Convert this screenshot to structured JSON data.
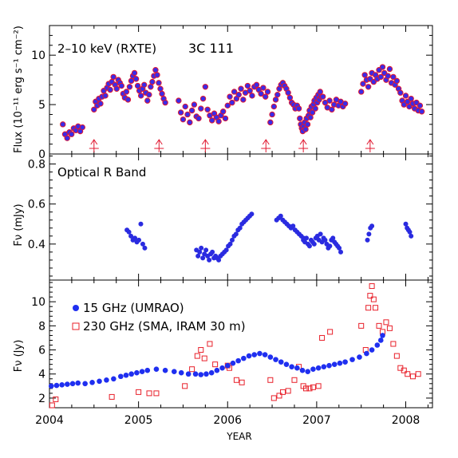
{
  "chart_data": [
    {
      "type": "scatter",
      "panel": "xray",
      "annotation_left": "2–10 keV (RXTE)",
      "annotation_right": "3C 111",
      "ylabel": "Flux (10⁻¹¹ erg s⁻¹ cm⁻²)",
      "xlim": [
        2004.0,
        2008.3
      ],
      "ylim": [
        0,
        13
      ],
      "yticks": [
        0,
        5,
        10
      ],
      "colors": {
        "fill": "#3a2be8",
        "edge": "#e01830"
      },
      "arrows_x": [
        2004.5,
        2005.23,
        2005.75,
        2006.43,
        2006.85,
        2007.6
      ],
      "segments": [
        {
          "x0": 2004.15,
          "x1": 2004.37,
          "values": [
            3.0,
            2.0,
            1.6,
            2.2,
            2.0,
            2.6,
            2.4,
            2.8,
            2.3,
            2.7
          ]
        },
        {
          "x0": 2004.5,
          "x1": 2005.3,
          "values": [
            4.5,
            5.3,
            4.9,
            5.6,
            5.1,
            5.8,
            6.4,
            5.9,
            6.7,
            7.1,
            6.5,
            7.3,
            7.8,
            7.0,
            6.6,
            7.5,
            7.2,
            6.9,
            6.1,
            5.7,
            6.3,
            5.5,
            6.8,
            7.4,
            7.9,
            8.2,
            7.6,
            6.9,
            6.4,
            5.9,
            6.6,
            7.0,
            6.2,
            5.4,
            6.0,
            6.8,
            7.3,
            7.9,
            8.5,
            8.0,
            7.2,
            6.6,
            6.1,
            5.6,
            5.2
          ]
        },
        {
          "x0": 2005.45,
          "x1": 2006.45,
          "values": [
            5.4,
            4.2,
            3.5,
            4.8,
            4.0,
            3.2,
            4.4,
            5.0,
            3.8,
            3.6,
            4.6,
            5.6,
            6.8,
            4.5,
            3.9,
            3.4,
            4.1,
            3.7,
            3.3,
            3.9,
            4.3,
            3.6,
            4.9,
            5.8,
            5.2,
            6.3,
            5.6,
            6.0,
            6.6,
            5.5,
            6.2,
            6.9,
            6.4,
            5.9,
            6.8,
            7.0,
            6.5,
            6.1,
            6.7,
            5.8,
            6.3
          ]
        },
        {
          "x0": 2006.48,
          "x1": 2006.78,
          "values": [
            3.2,
            4.0,
            4.8,
            5.5,
            6.0,
            6.6,
            7.0,
            7.2,
            6.9,
            6.6,
            6.2,
            5.7,
            5.2,
            5.0,
            4.6,
            4.9
          ]
        },
        {
          "x0": 2006.8,
          "x1": 2007.05,
          "values": [
            4.6,
            3.6,
            3.0,
            2.6,
            2.3,
            2.8,
            3.2,
            2.5,
            3.6,
            3.0,
            3.9,
            4.4,
            3.7,
            4.8,
            4.2,
            5.0,
            5.4,
            4.6,
            5.7,
            5.2,
            6.0,
            5.5,
            6.3,
            5.8
          ]
        },
        {
          "x0": 2007.07,
          "x1": 2007.32,
          "values": [
            5.8,
            5.2,
            4.7,
            5.4,
            4.5,
            5.0,
            5.5,
            4.9,
            5.3,
            4.8,
            5.1
          ]
        },
        {
          "x0": 2007.5,
          "x1": 2008.18,
          "values": [
            6.3,
            7.1,
            8.0,
            7.5,
            6.8,
            7.6,
            8.2,
            7.3,
            8.0,
            7.6,
            8.5,
            7.8,
            8.8,
            8.2,
            7.5,
            7.9,
            8.6,
            7.2,
            7.8,
            7.0,
            7.4,
            6.6,
            6.2,
            5.4,
            5.0,
            5.9,
            5.3,
            4.8,
            5.6,
            5.1,
            4.6,
            5.2,
            4.4,
            4.9,
            4.3
          ]
        }
      ]
    },
    {
      "type": "scatter",
      "panel": "optical",
      "annotation": "Optical R Band",
      "ylabel": "Fν (mJy)",
      "xlim": [
        2004.0,
        2008.3
      ],
      "ylim": [
        0.22,
        0.85
      ],
      "yticks": [
        0.4,
        0.6,
        0.8
      ],
      "colors": {
        "fill": "#2a2be0"
      },
      "segments": [
        {
          "x0": 2004.87,
          "x1": 2005.07,
          "values": [
            0.47,
            0.46,
            0.44,
            0.42,
            0.43,
            0.41,
            0.42,
            0.5,
            0.4,
            0.38
          ]
        },
        {
          "x0": 2005.65,
          "x1": 2005.9,
          "values": [
            0.37,
            0.34,
            0.36,
            0.38,
            0.33,
            0.35,
            0.37,
            0.34,
            0.32,
            0.35,
            0.36,
            0.33,
            0.34,
            0.33,
            0.32
          ]
        },
        {
          "x0": 2005.92,
          "x1": 2006.27,
          "values": [
            0.34,
            0.35,
            0.36,
            0.37,
            0.39,
            0.4,
            0.42,
            0.44,
            0.45,
            0.47,
            0.48,
            0.5,
            0.51,
            0.52,
            0.53,
            0.54,
            0.55
          ]
        },
        {
          "x0": 2006.55,
          "x1": 2006.85,
          "values": [
            0.52,
            0.53,
            0.54,
            0.52,
            0.51,
            0.5,
            0.49,
            0.48,
            0.49,
            0.47,
            0.46,
            0.45,
            0.44,
            0.43
          ]
        },
        {
          "x0": 2006.85,
          "x1": 2007.27,
          "values": [
            0.42,
            0.41,
            0.43,
            0.4,
            0.39,
            0.42,
            0.41,
            0.4,
            0.43,
            0.44,
            0.42,
            0.45,
            0.41,
            0.43,
            0.42,
            0.4,
            0.38,
            0.39,
            0.42,
            0.43,
            0.41,
            0.4,
            0.39,
            0.38,
            0.36
          ]
        },
        {
          "x0": 2007.57,
          "x1": 2007.62,
          "values": [
            0.42,
            0.45,
            0.48,
            0.49
          ]
        },
        {
          "x0": 2008.0,
          "x1": 2008.06,
          "values": [
            0.5,
            0.48,
            0.47,
            0.46,
            0.44
          ]
        }
      ]
    },
    {
      "type": "scatter",
      "panel": "radio",
      "ylabel": "Fν (Jy)",
      "xlabel": "YEAR",
      "xlim": [
        2004.0,
        2008.3
      ],
      "ylim": [
        1.2,
        11.8
      ],
      "yticks": [
        2,
        4,
        6,
        8,
        10
      ],
      "xticks": [
        2004,
        2005,
        2006,
        2007,
        2008
      ],
      "series": [
        {
          "name": "15 GHz (UMRAO)",
          "color": "#1f2ff0",
          "marker": "filled-circle",
          "points": [
            [
              2004.02,
              3.0
            ],
            [
              2004.08,
              3.05
            ],
            [
              2004.14,
              3.1
            ],
            [
              2004.2,
              3.15
            ],
            [
              2004.26,
              3.2
            ],
            [
              2004.32,
              3.25
            ],
            [
              2004.4,
              3.2
            ],
            [
              2004.48,
              3.3
            ],
            [
              2004.56,
              3.4
            ],
            [
              2004.64,
              3.5
            ],
            [
              2004.72,
              3.6
            ],
            [
              2004.8,
              3.8
            ],
            [
              2004.86,
              3.9
            ],
            [
              2004.92,
              4.0
            ],
            [
              2004.98,
              4.1
            ],
            [
              2005.04,
              4.2
            ],
            [
              2005.1,
              4.3
            ],
            [
              2005.2,
              4.4
            ],
            [
              2005.3,
              4.3
            ],
            [
              2005.4,
              4.2
            ],
            [
              2005.48,
              4.1
            ],
            [
              2005.56,
              4.0
            ],
            [
              2005.64,
              4.0
            ],
            [
              2005.7,
              3.95
            ],
            [
              2005.76,
              4.0
            ],
            [
              2005.82,
              4.1
            ],
            [
              2005.88,
              4.3
            ],
            [
              2005.94,
              4.5
            ],
            [
              2006.0,
              4.7
            ],
            [
              2006.06,
              4.9
            ],
            [
              2006.12,
              5.1
            ],
            [
              2006.18,
              5.3
            ],
            [
              2006.24,
              5.5
            ],
            [
              2006.3,
              5.6
            ],
            [
              2006.36,
              5.7
            ],
            [
              2006.42,
              5.6
            ],
            [
              2006.48,
              5.4
            ],
            [
              2006.54,
              5.2
            ],
            [
              2006.6,
              5.0
            ],
            [
              2006.66,
              4.8
            ],
            [
              2006.72,
              4.6
            ],
            [
              2006.78,
              4.5
            ],
            [
              2006.84,
              4.3
            ],
            [
              2006.9,
              4.2
            ],
            [
              2006.96,
              4.4
            ],
            [
              2007.02,
              4.5
            ],
            [
              2007.08,
              4.6
            ],
            [
              2007.14,
              4.7
            ],
            [
              2007.2,
              4.8
            ],
            [
              2007.26,
              4.9
            ],
            [
              2007.32,
              5.0
            ],
            [
              2007.4,
              5.2
            ],
            [
              2007.48,
              5.4
            ],
            [
              2007.56,
              5.7
            ],
            [
              2007.62,
              6.0
            ],
            [
              2007.68,
              6.4
            ],
            [
              2007.72,
              6.8
            ],
            [
              2007.74,
              7.2
            ]
          ]
        },
        {
          "name": "230 GHz (SMA, IRAM 30 m)",
          "color": "#e8202a",
          "marker": "open-square",
          "points": [
            [
              2004.03,
              1.4
            ],
            [
              2004.07,
              1.9
            ],
            [
              2004.7,
              2.1
            ],
            [
              2005.0,
              2.5
            ],
            [
              2005.12,
              2.4
            ],
            [
              2005.2,
              2.4
            ],
            [
              2005.52,
              3.0
            ],
            [
              2005.6,
              4.4
            ],
            [
              2005.66,
              5.5
            ],
            [
              2005.7,
              6.0
            ],
            [
              2005.74,
              5.3
            ],
            [
              2005.8,
              6.5
            ],
            [
              2005.86,
              4.8
            ],
            [
              2006.0,
              4.7
            ],
            [
              2006.02,
              4.5
            ],
            [
              2006.1,
              3.5
            ],
            [
              2006.16,
              3.3
            ],
            [
              2006.48,
              3.5
            ],
            [
              2006.52,
              2.0
            ],
            [
              2006.58,
              2.2
            ],
            [
              2006.62,
              2.5
            ],
            [
              2006.68,
              2.6
            ],
            [
              2006.75,
              3.5
            ],
            [
              2006.8,
              4.6
            ],
            [
              2006.85,
              3.0
            ],
            [
              2006.88,
              2.8
            ],
            [
              2006.92,
              2.8
            ],
            [
              2006.96,
              2.9
            ],
            [
              2007.02,
              3.0
            ],
            [
              2007.06,
              7.0
            ],
            [
              2007.15,
              7.5
            ],
            [
              2007.5,
              8.0
            ],
            [
              2007.55,
              6.0
            ],
            [
              2007.58,
              9.5
            ],
            [
              2007.6,
              10.5
            ],
            [
              2007.62,
              11.3
            ],
            [
              2007.64,
              10.2
            ],
            [
              2007.66,
              9.5
            ],
            [
              2007.7,
              8.0
            ],
            [
              2007.74,
              7.5
            ],
            [
              2007.78,
              8.3
            ],
            [
              2007.82,
              7.8
            ],
            [
              2007.86,
              6.5
            ],
            [
              2007.9,
              5.5
            ],
            [
              2007.94,
              4.5
            ],
            [
              2007.98,
              4.3
            ],
            [
              2008.02,
              4.0
            ],
            [
              2008.08,
              3.8
            ],
            [
              2008.14,
              4.0
            ]
          ]
        }
      ]
    }
  ]
}
